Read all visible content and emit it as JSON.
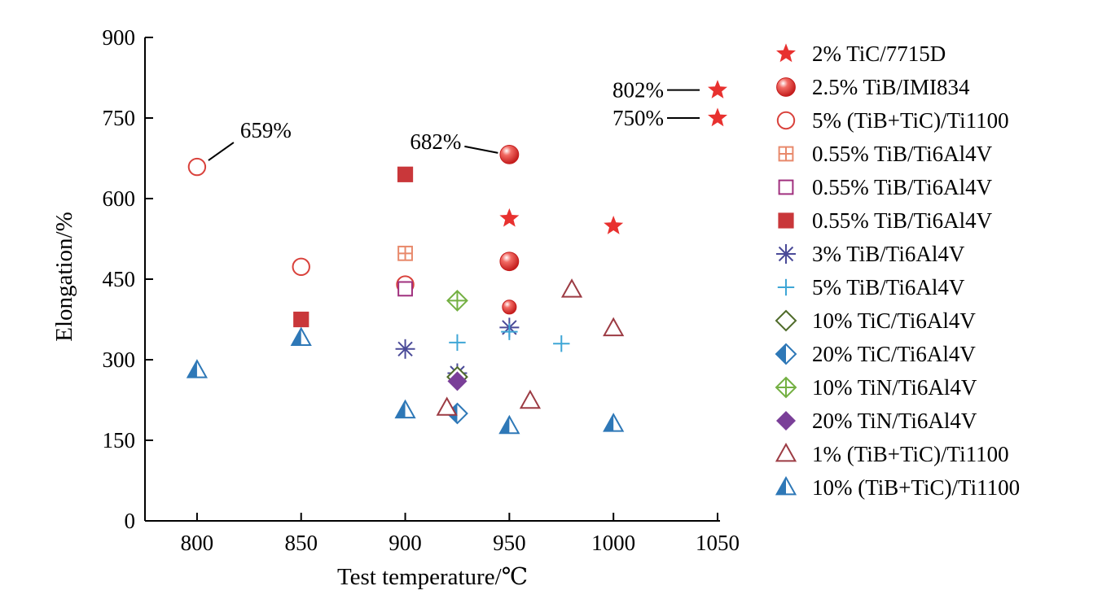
{
  "chart_data": {
    "type": "scatter",
    "xlabel": "Test temperature/℃",
    "ylabel": "Elongation/%",
    "xlim": [
      775,
      1050
    ],
    "ylim": [
      0,
      900
    ],
    "xticks": [
      800,
      850,
      900,
      950,
      1000,
      1050
    ],
    "yticks": [
      0,
      150,
      300,
      450,
      600,
      750,
      900
    ],
    "grid": false,
    "legend": "right",
    "series": [
      {
        "name": "2% TiC/7715D",
        "marker": "star-filled",
        "color": "#e8312f",
        "points": [
          [
            950,
            563
          ],
          [
            1000,
            549
          ],
          [
            1050,
            802
          ],
          [
            1050,
            750
          ]
        ]
      },
      {
        "name": "2.5% TiB/IMI834",
        "marker": "sphere",
        "color": "#e8312f",
        "points": [
          [
            950,
            682
          ],
          [
            950,
            483
          ],
          [
            950,
            398
          ]
        ]
      },
      {
        "name": "5% (TiB+TiC)/Ti1100",
        "marker": "circle-open",
        "color": "#d9413b",
        "points": [
          [
            800,
            659
          ],
          [
            850,
            473
          ],
          [
            900,
            440
          ]
        ]
      },
      {
        "name": "0.55% TiB/Ti6Al4V",
        "marker": "square-plus",
        "color": "#e8896b",
        "points": [
          [
            900,
            498
          ]
        ]
      },
      {
        "name": "0.55% TiB/Ti6Al4V",
        "marker": "square-open",
        "color": "#a0307e",
        "points": [
          [
            900,
            432
          ]
        ]
      },
      {
        "name": "0.55% TiB/Ti6Al4V",
        "marker": "square-filled",
        "color": "#c9373a",
        "points": [
          [
            900,
            645
          ],
          [
            850,
            375
          ]
        ]
      },
      {
        "name": "3% TiB/Ti6Al4V",
        "marker": "asterisk",
        "color": "#4a4a98",
        "points": [
          [
            900,
            320
          ],
          [
            925,
            275
          ],
          [
            950,
            360
          ]
        ]
      },
      {
        "name": "5% TiB/Ti6Al4V",
        "marker": "plus",
        "color": "#3ea6d6",
        "points": [
          [
            925,
            332
          ],
          [
            950,
            352
          ],
          [
            975,
            330
          ]
        ]
      },
      {
        "name": "10% TiC/Ti6Al4V",
        "marker": "diamond-open",
        "color": "#4f6b2a",
        "points": [
          [
            925,
            268
          ]
        ]
      },
      {
        "name": "20% TiC/Ti6Al4V",
        "marker": "diamond-half",
        "color": "#2e78b7",
        "points": [
          [
            925,
            200
          ]
        ]
      },
      {
        "name": "10% TiN/Ti6Al4V",
        "marker": "diamond-plus",
        "color": "#74b043",
        "points": [
          [
            925,
            410
          ]
        ]
      },
      {
        "name": "20% TiN/Ti6Al4V",
        "marker": "diamond-filled",
        "color": "#7a3f98",
        "points": [
          [
            925,
            260
          ]
        ]
      },
      {
        "name": "1% (TiB+TiC)/Ti1100",
        "marker": "triangle-open",
        "color": "#9c3b43",
        "points": [
          [
            920,
            210
          ],
          [
            960,
            223
          ],
          [
            980,
            430
          ],
          [
            1000,
            358
          ]
        ]
      },
      {
        "name": "10% (TiB+TiC)/Ti1100",
        "marker": "triangle-half",
        "color": "#2e78b7",
        "points": [
          [
            800,
            280
          ],
          [
            850,
            340
          ],
          [
            900,
            205
          ],
          [
            950,
            176
          ],
          [
            1000,
            180
          ]
        ]
      }
    ],
    "annotations": [
      {
        "text": "659%",
        "x": 800,
        "y": 659
      },
      {
        "text": "682%",
        "x": 950,
        "y": 682
      },
      {
        "text": "802%",
        "x": 1050,
        "y": 802
      },
      {
        "text": "750%",
        "x": 1050,
        "y": 750
      }
    ]
  }
}
